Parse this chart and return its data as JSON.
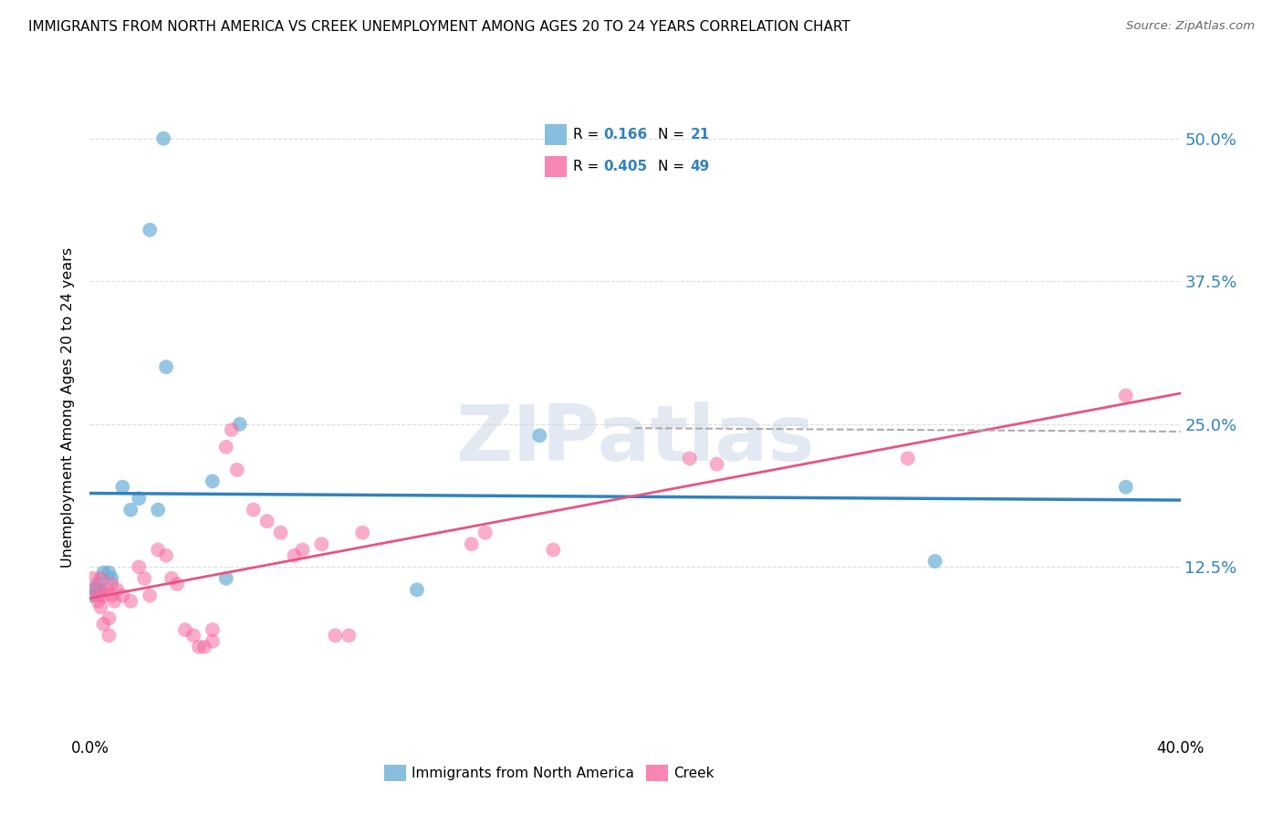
{
  "title": "IMMIGRANTS FROM NORTH AMERICA VS CREEK UNEMPLOYMENT AMONG AGES 20 TO 24 YEARS CORRELATION CHART",
  "source": "Source: ZipAtlas.com",
  "ylabel": "Unemployment Among Ages 20 to 24 years",
  "ytick_labels": [
    "50.0%",
    "37.5%",
    "25.0%",
    "12.5%"
  ],
  "ytick_values": [
    0.5,
    0.375,
    0.25,
    0.125
  ],
  "xlim": [
    0.0,
    0.4
  ],
  "ylim": [
    -0.02,
    0.55
  ],
  "legend_label1": "Immigrants from North America",
  "legend_label2": "Creek",
  "r1": "0.166",
  "n1": "21",
  "r2": "0.405",
  "n2": "49",
  "color_blue": "#6baed6",
  "color_pink": "#f768a1",
  "color_blue_line": "#3182bd",
  "color_pink_line": "#e75480",
  "color_rn": "#3182bd",
  "watermark": "ZIPatlas",
  "blue_points": [
    [
      0.027,
      0.5
    ],
    [
      0.022,
      0.42
    ],
    [
      0.028,
      0.3
    ],
    [
      0.055,
      0.25
    ],
    [
      0.045,
      0.2
    ],
    [
      0.012,
      0.195
    ],
    [
      0.018,
      0.185
    ],
    [
      0.015,
      0.175
    ],
    [
      0.025,
      0.175
    ],
    [
      0.005,
      0.12
    ],
    [
      0.007,
      0.12
    ],
    [
      0.008,
      0.115
    ],
    [
      0.003,
      0.11
    ],
    [
      0.002,
      0.105
    ],
    [
      0.004,
      0.105
    ],
    [
      0.001,
      0.1
    ],
    [
      0.05,
      0.115
    ],
    [
      0.12,
      0.105
    ],
    [
      0.165,
      0.24
    ],
    [
      0.31,
      0.13
    ],
    [
      0.38,
      0.195
    ]
  ],
  "pink_points": [
    [
      0.001,
      0.115
    ],
    [
      0.002,
      0.105
    ],
    [
      0.003,
      0.1
    ],
    [
      0.003,
      0.095
    ],
    [
      0.004,
      0.115
    ],
    [
      0.004,
      0.09
    ],
    [
      0.005,
      0.1
    ],
    [
      0.005,
      0.075
    ],
    [
      0.006,
      0.105
    ],
    [
      0.007,
      0.08
    ],
    [
      0.007,
      0.065
    ],
    [
      0.008,
      0.11
    ],
    [
      0.008,
      0.1
    ],
    [
      0.009,
      0.095
    ],
    [
      0.01,
      0.105
    ],
    [
      0.012,
      0.1
    ],
    [
      0.015,
      0.095
    ],
    [
      0.018,
      0.125
    ],
    [
      0.02,
      0.115
    ],
    [
      0.022,
      0.1
    ],
    [
      0.025,
      0.14
    ],
    [
      0.028,
      0.135
    ],
    [
      0.03,
      0.115
    ],
    [
      0.032,
      0.11
    ],
    [
      0.035,
      0.07
    ],
    [
      0.038,
      0.065
    ],
    [
      0.04,
      0.055
    ],
    [
      0.042,
      0.055
    ],
    [
      0.045,
      0.07
    ],
    [
      0.045,
      0.06
    ],
    [
      0.05,
      0.23
    ],
    [
      0.052,
      0.245
    ],
    [
      0.054,
      0.21
    ],
    [
      0.06,
      0.175
    ],
    [
      0.065,
      0.165
    ],
    [
      0.07,
      0.155
    ],
    [
      0.075,
      0.135
    ],
    [
      0.078,
      0.14
    ],
    [
      0.085,
      0.145
    ],
    [
      0.09,
      0.065
    ],
    [
      0.095,
      0.065
    ],
    [
      0.1,
      0.155
    ],
    [
      0.14,
      0.145
    ],
    [
      0.145,
      0.155
    ],
    [
      0.17,
      0.14
    ],
    [
      0.22,
      0.22
    ],
    [
      0.23,
      0.215
    ],
    [
      0.3,
      0.22
    ],
    [
      0.38,
      0.275
    ]
  ]
}
